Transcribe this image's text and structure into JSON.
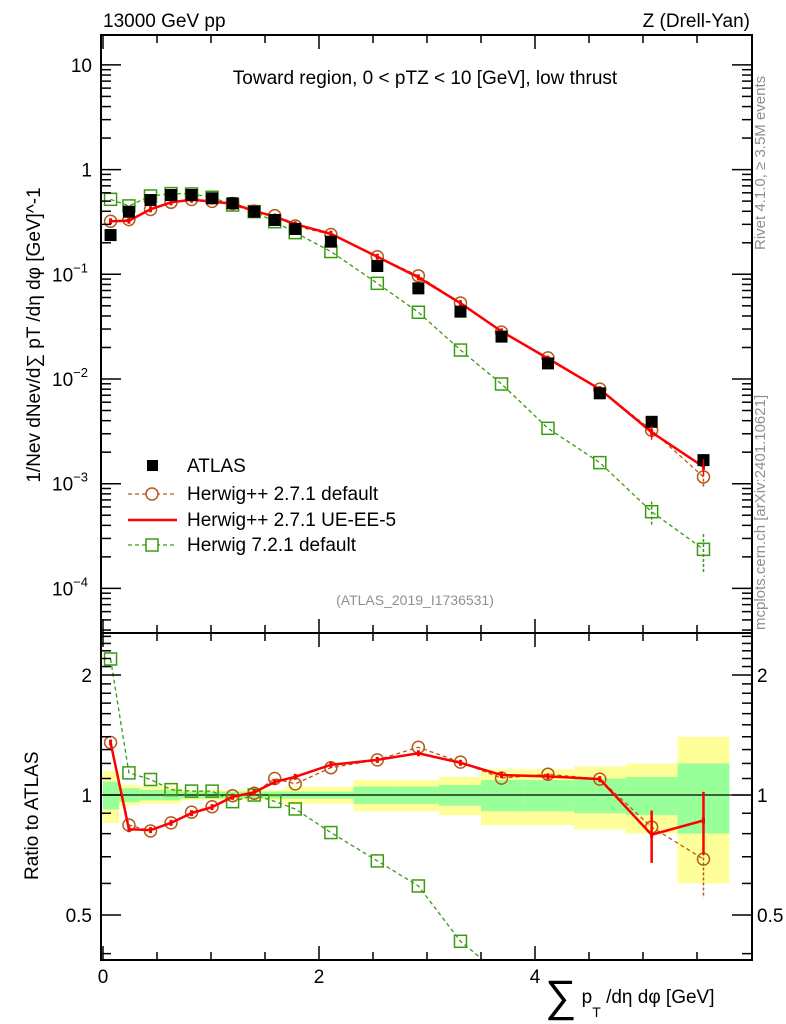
{
  "header": {
    "left": "13000 GeV pp",
    "right": "Z (Drell-Yan)"
  },
  "side": {
    "top": "Rivet 4.1.0, ≥ 3.5M events",
    "bottom": "mcplots.cern.ch [arXiv:2401.10621]"
  },
  "chart_data": [
    {
      "type": "scatter",
      "title": "Toward region, 0 < pTZ < 10 [GeV], low thrust",
      "title_parts": {
        "a": "Toward region, 0 < p",
        "sup": "Z",
        "sub": "T",
        "b": " < 10 [GeV], low thrust"
      },
      "ylabel": "1/Nev dNev/d∑ pT /dη dφ [GeV]^-1",
      "ylabel_parts": {
        "a": "1/N",
        "ev1": "ev",
        "b": " dN",
        "ev2": "ev",
        "c": "/d",
        "sum": "∑",
        "d": " p",
        "t": "T",
        "e": " /dη dφ  [GeV]",
        "exp": "-1"
      },
      "yscale": "log",
      "ylim": [
        4e-05,
        20
      ],
      "xlim": [
        -0.03,
        6.0
      ],
      "ytick_labels": [
        {
          "v": 10,
          "base": "10",
          "exp": ""
        },
        {
          "v": 1,
          "base": "1",
          "exp": ""
        },
        {
          "v": 0.1,
          "base": "10",
          "exp": "−1"
        },
        {
          "v": 0.01,
          "base": "10",
          "exp": "−2"
        },
        {
          "v": 0.001,
          "base": "10",
          "exp": "−3"
        },
        {
          "v": 0.0001,
          "base": "10",
          "exp": "−4"
        }
      ],
      "x": [
        0.07,
        0.24,
        0.44,
        0.63,
        0.82,
        1.01,
        1.2,
        1.4,
        1.59,
        1.78,
        2.11,
        2.54,
        2.92,
        3.31,
        3.69,
        4.12,
        4.6,
        5.08,
        5.56
      ],
      "bin_edges": [
        0.0,
        0.15,
        0.34,
        0.53,
        0.72,
        0.91,
        1.1,
        1.3,
        1.49,
        1.68,
        1.94,
        2.32,
        2.73,
        3.11,
        3.5,
        3.9,
        4.36,
        4.84,
        5.32,
        5.8
      ],
      "series": [
        {
          "name": "ATLAS",
          "key": "atlas",
          "color": "#000000",
          "values": [
            0.237,
            0.396,
            0.512,
            0.572,
            0.572,
            0.532,
            0.477,
            0.397,
            0.33,
            0.271,
            0.205,
            0.12,
            0.0734,
            0.044,
            0.0254,
            0.0141,
            0.0073,
            0.0039,
            0.00168
          ]
        },
        {
          "name": "Herwig++ 2.7.1 default",
          "key": "hpp_def",
          "color": "#b35a1f",
          "values": [
            0.321,
            0.333,
            0.416,
            0.487,
            0.518,
            0.497,
            0.475,
            0.401,
            0.363,
            0.289,
            0.24,
            0.147,
            0.0967,
            0.0532,
            0.028,
            0.0159,
            0.008,
            0.00324,
            0.00116
          ]
        },
        {
          "name": "Herwig++ 2.7.1 UE-EE-5",
          "key": "hpp_ue",
          "color": "#ff0000",
          "values": [
            0.321,
            0.325,
            0.418,
            0.487,
            0.515,
            0.496,
            0.472,
            0.403,
            0.356,
            0.301,
            0.244,
            0.147,
            0.0934,
            0.053,
            0.0285,
            0.0157,
            0.008,
            0.0031,
            0.00145
          ]
        },
        {
          "name": "Herwig 7.2.1 default",
          "key": "h7_def",
          "color": "#3a9a10",
          "values": [
            0.52,
            0.45,
            0.56,
            0.59,
            0.585,
            0.544,
            0.459,
            0.397,
            0.318,
            0.25,
            0.165,
            0.082,
            0.0434,
            0.0189,
            0.00896,
            0.00338,
            0.00159,
            0.00054,
            0.000236
          ]
        }
      ],
      "legend_position": "lower-left",
      "annotation": "(ATLAS_2019_I1736531)"
    },
    {
      "type": "line",
      "ylabel": "Ratio to ATLAS",
      "xlabel_parts": {
        "sum": "∑",
        "a": " p",
        "t": "T",
        "b": " /dη dφ [GeV]"
      },
      "xlabel": "∑ pT /dη dφ [GeV]",
      "yscale": "log",
      "ylim": [
        0.385,
        2.55
      ],
      "xtick_labels": [
        {
          "v": 0,
          "t": "0"
        },
        {
          "v": 2,
          "t": "2"
        },
        {
          "v": 4,
          "t": "4"
        }
      ],
      "ytick_labels": [
        {
          "v": 2,
          "t": "2"
        },
        {
          "v": 1,
          "t": "1"
        },
        {
          "v": 0.5,
          "t": "0.5"
        }
      ],
      "reference": 1,
      "band_total_rel": [
        0.15,
        0.06,
        0.05,
        0.05,
        0.03,
        0.03,
        0.03,
        0.03,
        0.03,
        0.05,
        0.05,
        0.09,
        0.09,
        0.11,
        0.16,
        0.16,
        0.18,
        0.2,
        0.4
      ],
      "band_stat_rel": [
        0.08,
        0.04,
        0.03,
        0.03,
        0.02,
        0.02,
        0.02,
        0.02,
        0.02,
        0.02,
        0.02,
        0.05,
        0.05,
        0.06,
        0.09,
        0.09,
        0.1,
        0.11,
        0.2
      ],
      "band_colors": {
        "total": "#ffff99",
        "stat": "#99ff99"
      }
    }
  ]
}
